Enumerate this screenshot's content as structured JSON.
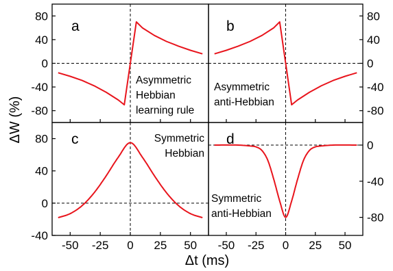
{
  "chart_data": [
    {
      "panel": "a",
      "type": "line",
      "title": "",
      "annotation": [
        "Asymmetric",
        "Hebbian",
        "learning rule"
      ],
      "xlim": [
        -65,
        65
      ],
      "ylim": [
        -100,
        100
      ],
      "yticks": [
        "80",
        "40",
        "0",
        "-40",
        "-80"
      ],
      "x": [
        -60,
        -50,
        -40,
        -30,
        -20,
        -10,
        -5,
        0,
        5,
        10,
        20,
        30,
        40,
        50,
        60
      ],
      "series": [
        {
          "color": "#e8141c",
          "values": [
            -16,
            -22,
            -29,
            -38,
            -49,
            -62,
            -70,
            0,
            70,
            60,
            47,
            37,
            29,
            22,
            16
          ]
        }
      ]
    },
    {
      "panel": "b",
      "type": "line",
      "title": "",
      "annotation": [
        "Asymmetric",
        "anti-Hebbian"
      ],
      "xlim": [
        -65,
        65
      ],
      "ylim": [
        -100,
        100
      ],
      "yticks": [
        "80",
        "40",
        "0",
        "-40",
        "-80"
      ],
      "x": [
        -60,
        -50,
        -40,
        -30,
        -20,
        -10,
        -5,
        0,
        5,
        10,
        20,
        30,
        40,
        50,
        60
      ],
      "series": [
        {
          "color": "#e8141c",
          "values": [
            16,
            22,
            29,
            37,
            47,
            60,
            70,
            0,
            -70,
            -62,
            -49,
            -38,
            -29,
            -22,
            -16
          ]
        }
      ]
    },
    {
      "panel": "c",
      "type": "line",
      "title": "",
      "annotation": [
        "Symmetric",
        "Hebbian"
      ],
      "xlim": [
        -65,
        65
      ],
      "ylim": [
        -40,
        100
      ],
      "yticks": [
        "80",
        "40",
        "0",
        "-40"
      ],
      "xticks": [
        "-50",
        "-25",
        "0",
        "25",
        "50"
      ],
      "x": [
        -60,
        -50,
        -40,
        -30,
        -20,
        -10,
        0,
        10,
        20,
        30,
        40,
        50,
        60
      ],
      "series": [
        {
          "color": "#e8141c",
          "values": [
            -18,
            -13,
            -3,
            13,
            34,
            57,
            75,
            57,
            34,
            13,
            -3,
            -13,
            -18
          ]
        }
      ]
    },
    {
      "panel": "d",
      "type": "line",
      "title": "",
      "annotation": [
        "Symmetric",
        "anti-Hebbian"
      ],
      "xlim": [
        -65,
        65
      ],
      "ylim": [
        -100,
        25
      ],
      "yticks": [
        "0",
        "-40",
        "-80"
      ],
      "xticks": [
        "-50",
        "-25",
        "0",
        "25",
        "50"
      ],
      "x": [
        -60,
        -40,
        -30,
        -25,
        -20,
        -15,
        -10,
        -5,
        0,
        5,
        10,
        15,
        20,
        25,
        30,
        40,
        60
      ],
      "series": [
        {
          "color": "#e8141c",
          "values": [
            0,
            0,
            -1,
            -2,
            -6,
            -17,
            -38,
            -62,
            -80,
            -62,
            -38,
            -17,
            -6,
            -2,
            -1,
            0,
            0
          ]
        }
      ]
    }
  ],
  "labels": {
    "panel_a": "a",
    "panel_b": "b",
    "panel_c": "c",
    "panel_d": "d",
    "ylabel": "ΔW (%)",
    "xlabel": "Δt (ms)"
  },
  "colors": {
    "curve": "#e8141c",
    "axis": "#000000"
  }
}
